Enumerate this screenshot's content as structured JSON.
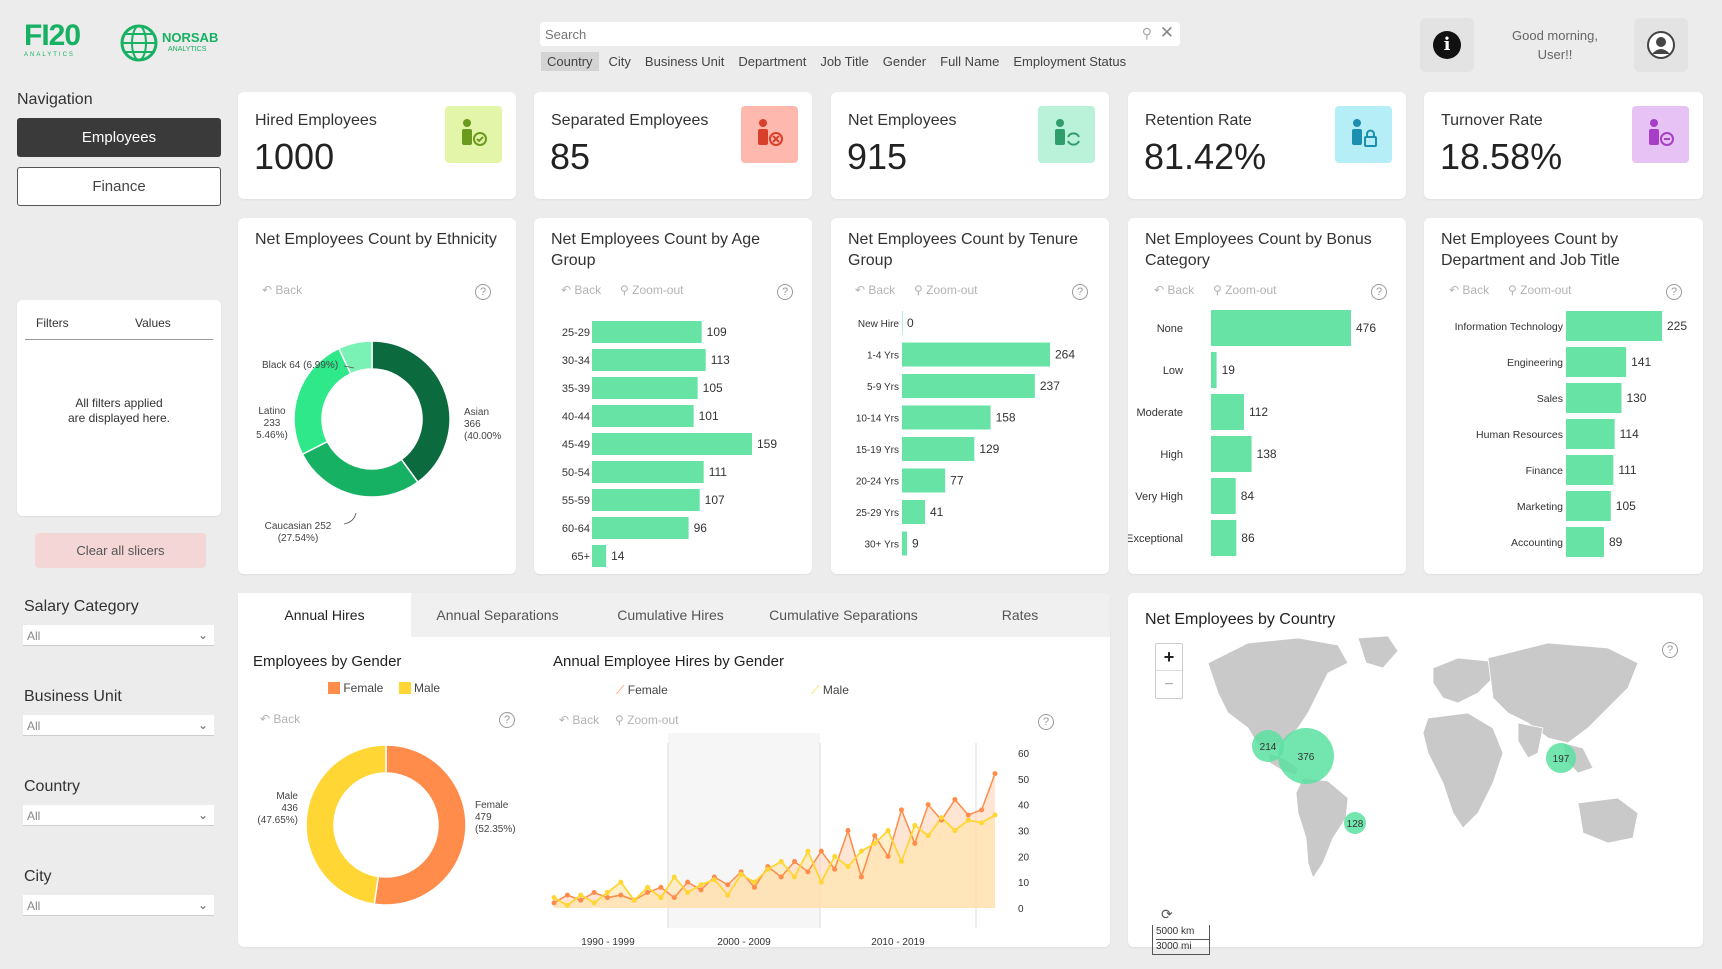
{
  "header": {
    "logo1": "FI20",
    "logo1_sub": "ANALYTICS",
    "logo2": "NORSAB",
    "logo2_sub": "ANALYTICS",
    "search_placeholder": "Search",
    "filters": [
      "Country",
      "City",
      "Business Unit",
      "Department",
      "Job Title",
      "Gender",
      "Full Name",
      "Employment Status"
    ],
    "greeting_line1": "Good morning,",
    "greeting_line2": "User!!"
  },
  "nav": {
    "title": "Navigation",
    "items": [
      "Employees",
      "Finance"
    ]
  },
  "filters_pane": {
    "col1": "Filters",
    "col2": "Values",
    "message": "All filters applied are displayed here.",
    "clear": "Clear all slicers"
  },
  "slicers": [
    {
      "label": "Salary Category",
      "value": "All"
    },
    {
      "label": "Business Unit",
      "value": "All"
    },
    {
      "label": "Country",
      "value": "All"
    },
    {
      "label": "City",
      "value": "All"
    }
  ],
  "kpis": [
    {
      "title": "Hired Employees",
      "value": "1000",
      "color": "#e3f5a8",
      "icon_color": "#6a9a1e"
    },
    {
      "title": "Separated Employees",
      "value": "85",
      "color": "#ffb8ad",
      "icon_color": "#d9402b"
    },
    {
      "title": "Net Employees",
      "value": "915",
      "color": "#b9f2d9",
      "icon_color": "#2f9e6b"
    },
    {
      "title": "Retention Rate",
      "value": "81.42%",
      "color": "#b6eef7",
      "icon_color": "#1a8fb0"
    },
    {
      "title": "Turnover Rate",
      "value": "18.58%",
      "color": "#e7c2f4",
      "icon_color": "#a63ec7"
    }
  ],
  "controls": {
    "back": "Back",
    "zoom": "Zoom-out",
    "q": "?"
  },
  "ethnicity": {
    "title": "Net Employees Count by Ethnicity",
    "slices": [
      {
        "name": "Asian",
        "value": 366,
        "pct": "40.00%",
        "color": "#0b6b3f"
      },
      {
        "name": "Caucasian",
        "value": 252,
        "pct": "27.54%",
        "color": "#16b163"
      },
      {
        "name": "Latino",
        "value": 233,
        "pct": "25.46%",
        "color": "#2ee88a"
      },
      {
        "name": "Black",
        "value": 64,
        "pct": "6.99%",
        "color": "#7af2b5"
      }
    ],
    "labels": {
      "black": "Black 64 (6.99%)",
      "latino": [
        "Latino",
        "233",
        "5.46%)"
      ],
      "asian": [
        "Asian",
        "366",
        "(40.00%"
      ],
      "caucasian": [
        "Caucasian 252",
        "(27.54%)"
      ]
    }
  },
  "age": {
    "title": "Net Employees Count by Age Group",
    "categories": [
      "25-29",
      "30-34",
      "35-39",
      "40-44",
      "45-49",
      "50-54",
      "55-59",
      "60-64",
      "65+"
    ],
    "values": [
      109,
      113,
      105,
      101,
      159,
      111,
      107,
      96,
      14
    ]
  },
  "tenure": {
    "title": "Net Employees Count by Tenure Group",
    "categories": [
      "New Hire",
      "1-4 Yrs",
      "5-9 Yrs",
      "10-14 Yrs",
      "15-19 Yrs",
      "20-24 Yrs",
      "25-29 Yrs",
      "30+ Yrs"
    ],
    "values": [
      0,
      264,
      237,
      158,
      129,
      77,
      41,
      9
    ]
  },
  "bonus": {
    "title": "Net Employees Count by Bonus Category",
    "categories": [
      "None",
      "Low",
      "Moderate",
      "High",
      "Very High",
      "Exceptional"
    ],
    "values": [
      476,
      19,
      112,
      138,
      84,
      86
    ]
  },
  "dept": {
    "title": "Net Employees Count by Department and Job Title",
    "categories": [
      "Information Technology",
      "Engineering",
      "Sales",
      "Human Resources",
      "Finance",
      "Marketing",
      "Accounting"
    ],
    "values": [
      225,
      141,
      130,
      114,
      111,
      105,
      89
    ]
  },
  "tabs": [
    "Annual Hires",
    "Annual Separations",
    "Cumulative Hires",
    "Cumulative Separations",
    "Rates"
  ],
  "gender": {
    "title": "Employees by Gender",
    "legend": [
      "Female",
      "Male"
    ],
    "female": {
      "value": 479,
      "pct": "(52.35%)",
      "color": "#ff8c4a"
    },
    "male": {
      "value": 436,
      "pct": "(47.65%)",
      "color": "#ffd633"
    },
    "female_label": [
      "Female",
      "479",
      "(52.35%)"
    ],
    "male_label": [
      "Male",
      "436",
      "(47.65%)"
    ]
  },
  "hires": {
    "title": "Annual Employee Hires by Gender",
    "legend": [
      "Female",
      "Male"
    ],
    "yticks": [
      "60",
      "50",
      "40",
      "30",
      "20",
      "10",
      "0"
    ],
    "xgroups": [
      "1990 - 1999",
      "2000 - 2009",
      "2010 - 2019"
    ],
    "female": [
      2,
      5,
      3,
      6,
      4,
      5,
      3,
      6,
      8,
      4,
      10,
      7,
      12,
      9,
      14,
      8,
      16,
      12,
      18,
      14,
      22,
      15,
      30,
      12,
      28,
      20,
      38,
      25,
      40,
      34,
      42,
      36,
      38,
      52
    ],
    "male": [
      4,
      1,
      5,
      2,
      6,
      10,
      3,
      8,
      4,
      12,
      6,
      9,
      11,
      5,
      13,
      10,
      15,
      18,
      12,
      22,
      10,
      20,
      16,
      22,
      25,
      30,
      18,
      32,
      28,
      35,
      30,
      34,
      33,
      36
    ]
  },
  "map": {
    "title": "Net Employees by Country",
    "bubbles": [
      "214",
      "376",
      "197",
      "128"
    ],
    "scale": [
      "5000 km",
      "3000 mi"
    ],
    "zoom_in": "+",
    "zoom_out": "−"
  }
}
